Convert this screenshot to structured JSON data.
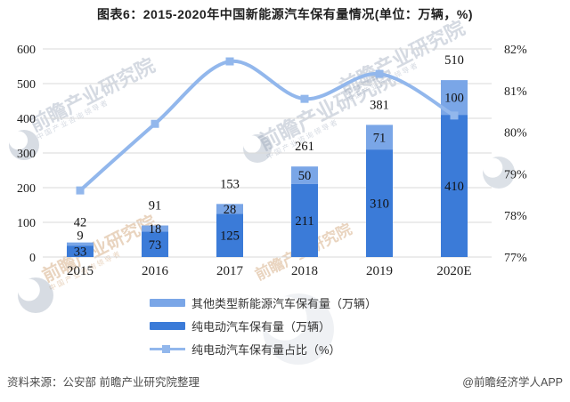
{
  "title": "图表6：2015-2020年中国新能源汽车保有量情况(单位：万辆，%)",
  "source": "资料来源：公安部 前瞻产业研究院整理",
  "credit": "@前瞻经济学人APP",
  "watermark": {
    "text": "前瞻产业研究院",
    "subtext": "中国产业咨询领导者"
  },
  "colors": {
    "other_bar": "#7aa6e7",
    "pure_bar": "#3b7bd8",
    "share_line": "#92b7ec",
    "grid": "#d9d9d9",
    "axis_text": "#1f1f1f",
    "bar_label": "#111111",
    "footer_text": "#4d4d4d"
  },
  "legend": [
    {
      "label": "其他类型新能源汽车保有量（万辆）",
      "type": "bar",
      "color_key": "other_bar"
    },
    {
      "label": "纯电动汽车保有量（万辆）",
      "type": "bar",
      "color_key": "pure_bar"
    },
    {
      "label": "纯电动汽车保有量占比（%）",
      "type": "line",
      "color_key": "share_line"
    }
  ],
  "chart_data": {
    "type": "bar",
    "subtype": "stacked bars with secondary-axis smooth line",
    "title": "图表6：2015-2020年中国新能源汽车保有量情况(单位：万辆，%)",
    "categories": [
      "2015",
      "2016",
      "2017",
      "2018",
      "2019",
      "2020E"
    ],
    "series": [
      {
        "name": "纯电动汽车保有量（万辆）",
        "type": "bar-stack-bottom",
        "axis": "left",
        "values": [
          33,
          73,
          125,
          211,
          310,
          410
        ]
      },
      {
        "name": "其他类型新能源汽车保有量（万辆）",
        "type": "bar-stack-top",
        "axis": "left",
        "values": [
          9,
          18,
          28,
          50,
          71,
          100
        ]
      },
      {
        "name": "纯电动汽车保有量占比（%）",
        "type": "line",
        "axis": "right",
        "values": [
          78.6,
          80.2,
          81.7,
          80.8,
          81.4,
          80.4
        ]
      }
    ],
    "totals": [
      42,
      91,
      153,
      261,
      381,
      510
    ],
    "left_axis": {
      "min": 0,
      "max": 600,
      "step": 100,
      "tick_labels": [
        "0",
        "100",
        "200",
        "300",
        "400",
        "500",
        "600"
      ]
    },
    "right_axis": {
      "min": 77,
      "max": 82,
      "step": 1,
      "tick_labels": [
        "77%",
        "78%",
        "79%",
        "80%",
        "81%",
        "82%"
      ]
    },
    "grid": "horizontal",
    "legend_position": "bottom"
  }
}
